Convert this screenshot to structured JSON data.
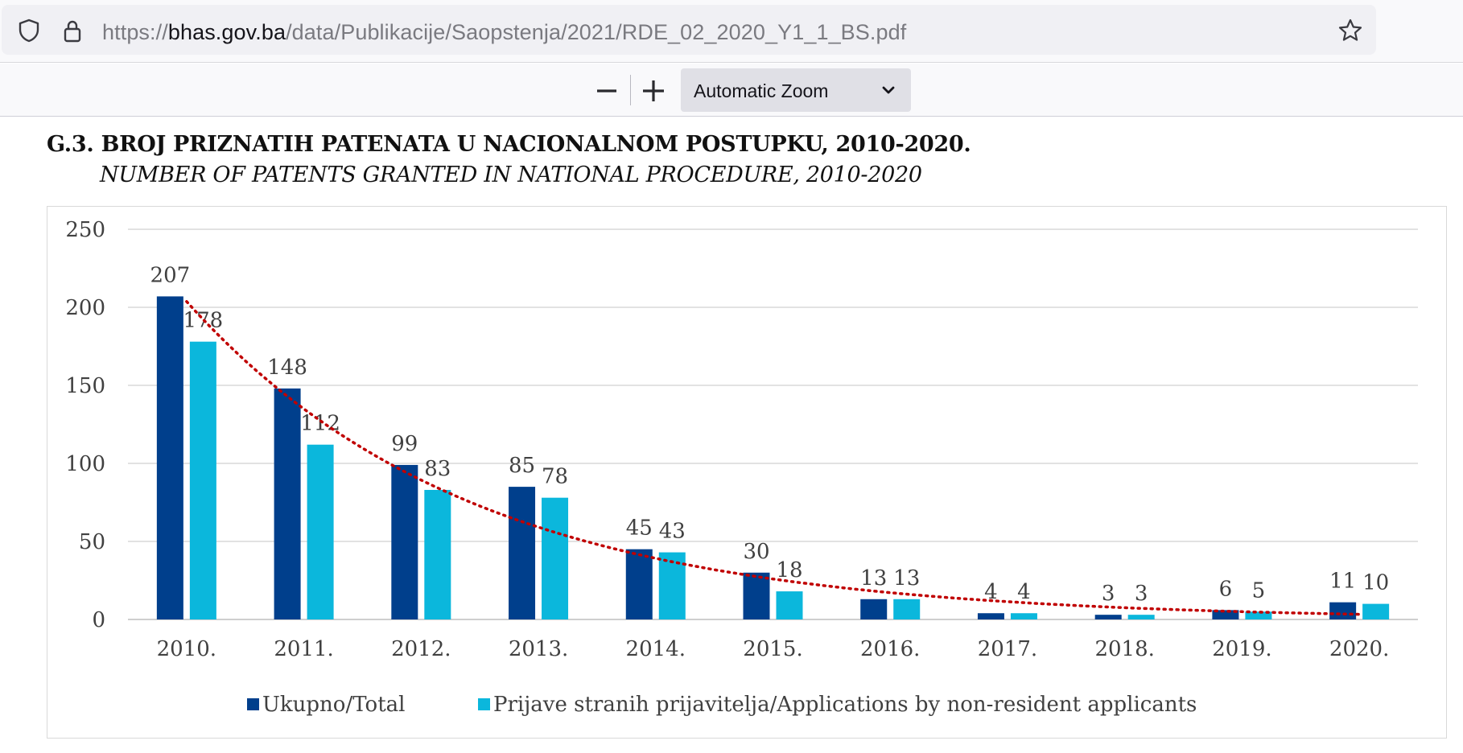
{
  "browser": {
    "url_prefix": "https://",
    "url_domain": "bhas.gov.ba",
    "url_path": "/data/Publikacije/Saopstenja/2021/RDE_02_2020_Y1_1_BS.pdf",
    "icons": [
      "shield-icon",
      "lock-icon",
      "bookmark-star-icon"
    ]
  },
  "pdf_toolbar": {
    "zoom_label": "Automatic Zoom",
    "icons": [
      "zoom-out-icon",
      "zoom-in-icon",
      "chevron-down-icon"
    ]
  },
  "document": {
    "title_bs": "G.3.  BROJ PRIZNATIH PATENATA U NACIONALNOM POSTUPKU, 2010-2020.",
    "title_en": "NUMBER OF PATENTS GRANTED IN NATIONAL PROCEDURE, 2010-2020"
  },
  "chart_data": {
    "type": "bar",
    "categories": [
      "2010.",
      "2011.",
      "2012.",
      "2013.",
      "2014.",
      "2015.",
      "2016.",
      "2017.",
      "2018.",
      "2019.",
      "2020."
    ],
    "series": [
      {
        "name": "Ukupno/Total",
        "color": "#003f8c",
        "values": [
          207,
          148,
          99,
          85,
          45,
          30,
          13,
          4,
          3,
          6,
          11
        ]
      },
      {
        "name": "Prijave stranih prijavitelja/Applications by non-resident applicants",
        "color": "#0bb7dc",
        "values": [
          178,
          112,
          83,
          78,
          43,
          18,
          13,
          4,
          3,
          5,
          10
        ]
      }
    ],
    "ylim": [
      0,
      250
    ],
    "yticks": [
      "0",
      "50",
      "100",
      "150",
      "200",
      "250"
    ],
    "grid": true,
    "legend_position": "bottom",
    "trendline": {
      "type": "exponential",
      "series": "Ukupno/Total",
      "style": "dotted",
      "color": "#c00000"
    }
  }
}
